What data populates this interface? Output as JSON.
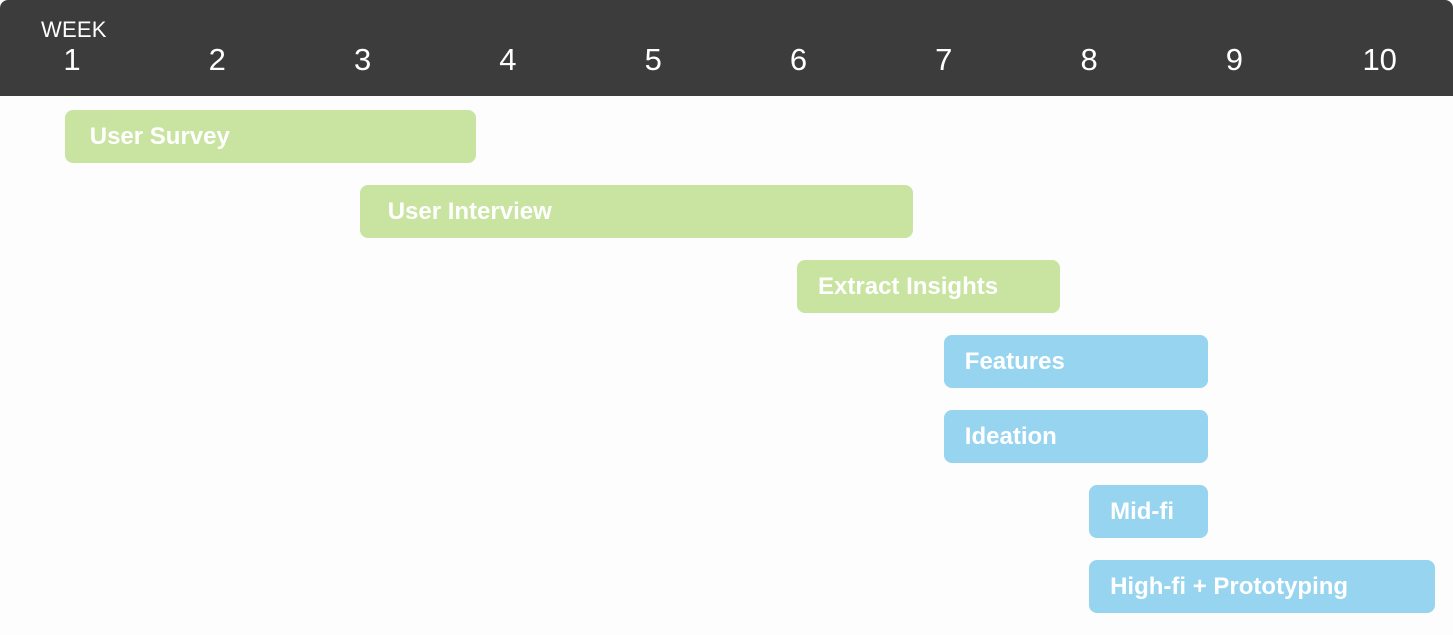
{
  "chart_data": {
    "type": "gantt",
    "axis_label": "WEEK",
    "weeks": [
      "1",
      "2",
      "3",
      "4",
      "5",
      "6",
      "7",
      "8",
      "9",
      "10"
    ],
    "colors": {
      "research": "#c8e4a0",
      "design": "#96d4f0"
    },
    "tasks": [
      {
        "label": "User Survey",
        "start": 0.95,
        "end": 3.78,
        "phase": "research"
      },
      {
        "label": "User Interview",
        "start": 2.98,
        "end": 6.79,
        "phase": "research"
      },
      {
        "label": "Extract Insights",
        "start": 5.99,
        "end": 7.8,
        "phase": "research"
      },
      {
        "label": "Features",
        "start": 7.0,
        "end": 8.82,
        "phase": "design"
      },
      {
        "label": "Ideation",
        "start": 7.0,
        "end": 8.82,
        "phase": "design"
      },
      {
        "label": "Mid-fi",
        "start": 8.0,
        "end": 8.82,
        "phase": "design"
      },
      {
        "label": "High-fi + Prototyping",
        "start": 8.0,
        "end": 10.38,
        "phase": "design"
      }
    ]
  }
}
